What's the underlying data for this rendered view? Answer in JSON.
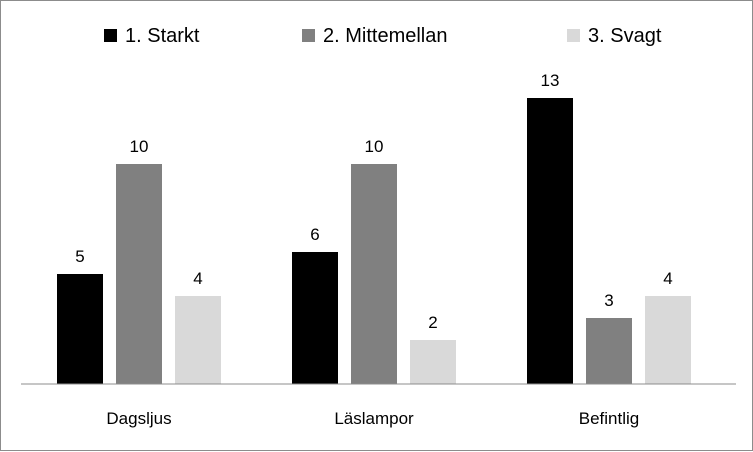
{
  "chart_data": {
    "type": "bar",
    "title": "",
    "xlabel": "",
    "ylabel": "",
    "categories": [
      "Dagsljus",
      "Läslampor",
      "Befintlig"
    ],
    "series": [
      {
        "name": "1. Starkt",
        "values": [
          5,
          6,
          13
        ],
        "color": "#000000"
      },
      {
        "name": "2. Mittemellan",
        "values": [
          10,
          10,
          3
        ],
        "color": "#808080"
      },
      {
        "name": "3. Svagt",
        "values": [
          4,
          2,
          4
        ],
        "color": "#d9d9d9"
      }
    ],
    "ylim": [
      0,
      13
    ],
    "grid": false,
    "legend_position": "top",
    "data_labels": true
  }
}
